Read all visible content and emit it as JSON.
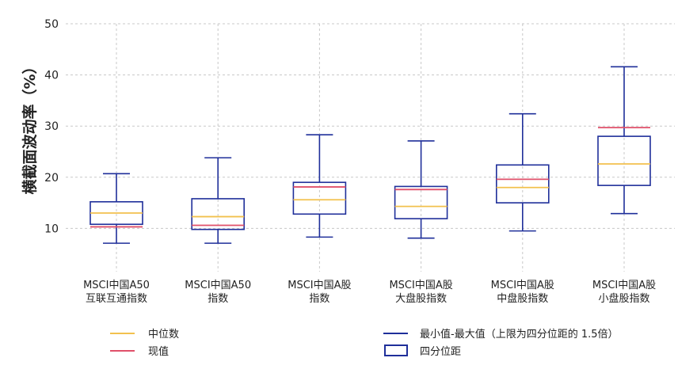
{
  "chart_data": {
    "type": "boxplot",
    "ylabel": "横截面波动率（%）",
    "ylim": [
      0,
      50
    ],
    "yticks": [
      10,
      20,
      30,
      40,
      50
    ],
    "grid": true,
    "categories": [
      [
        "MSCI中国A50",
        "互联互通指数"
      ],
      [
        "MSCI中国A50",
        "指数"
      ],
      [
        "MSCI中国A股",
        "指数"
      ],
      [
        "MSCI中国A股",
        "大盘股指数"
      ],
      [
        "MSCI中国A股",
        "中盘股指数"
      ],
      [
        "MSCI中国A股",
        "小盘股指数"
      ]
    ],
    "boxes": [
      {
        "min": 7.1,
        "q1": 10.8,
        "median": 13.0,
        "q3": 15.2,
        "max": 20.7,
        "current": 10.3
      },
      {
        "min": 7.1,
        "q1": 9.8,
        "median": 12.3,
        "q3": 15.8,
        "max": 23.8,
        "current": 10.6
      },
      {
        "min": 8.3,
        "q1": 12.8,
        "median": 15.6,
        "q3": 19.0,
        "max": 28.3,
        "current": 18.1
      },
      {
        "min": 8.1,
        "q1": 11.9,
        "median": 14.3,
        "q3": 18.2,
        "max": 27.1,
        "current": 17.6
      },
      {
        "min": 9.5,
        "q1": 15.0,
        "median": 18.0,
        "q3": 22.4,
        "max": 32.4,
        "current": 19.6
      },
      {
        "min": 12.9,
        "q1": 18.4,
        "median": 22.6,
        "q3": 28.0,
        "max": 41.6,
        "current": 29.7
      }
    ],
    "colors": {
      "box": "#1f2f9a",
      "median": "#f2c14e",
      "current": "#e0506a",
      "grid": "#c8c8c8"
    },
    "legend": {
      "median": "中位数",
      "current": "现值",
      "whisker": "最小值-最大值（上限为四分位距的 1.5倍）",
      "iqr": "四分位距"
    }
  }
}
